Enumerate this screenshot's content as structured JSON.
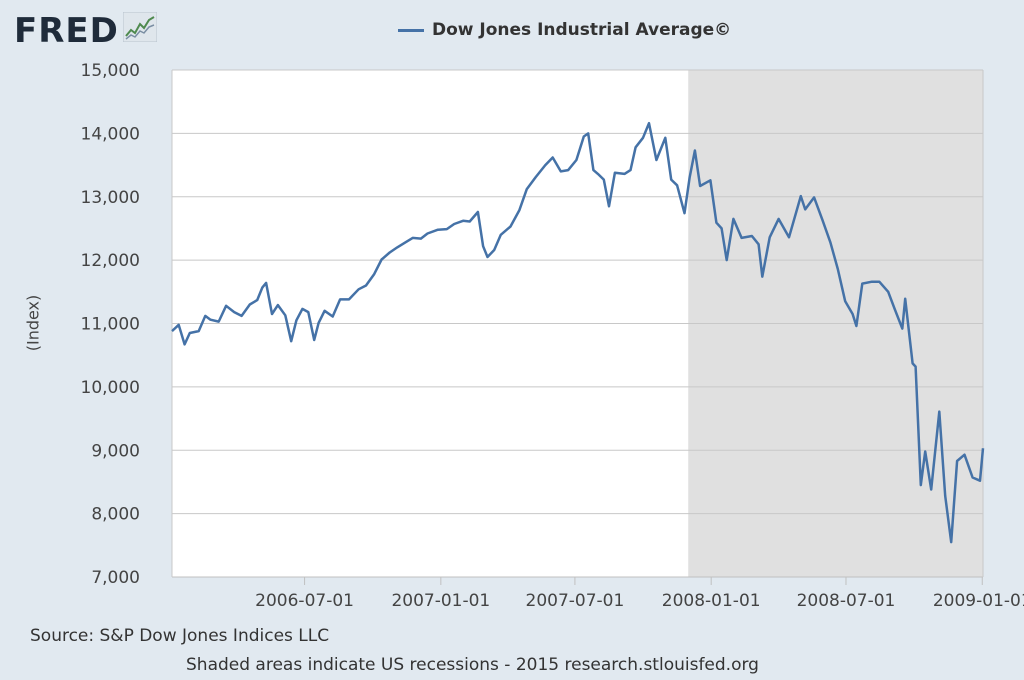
{
  "logo": {
    "text": "FRED"
  },
  "chart_data": {
    "type": "line",
    "title": "Dow Jones Industrial Average©",
    "ylabel": "(Index)",
    "xlabel": "",
    "ylim": [
      7000,
      15000
    ],
    "xlim": [
      "2006-01-03",
      "2009-01-02"
    ],
    "yticks": [
      {
        "value": 7000,
        "label": "7,000"
      },
      {
        "value": 8000,
        "label": "8,000"
      },
      {
        "value": 9000,
        "label": "9,000"
      },
      {
        "value": 10000,
        "label": "10,000"
      },
      {
        "value": 11000,
        "label": "11,000"
      },
      {
        "value": 12000,
        "label": "12,000"
      },
      {
        "value": 13000,
        "label": "13,000"
      },
      {
        "value": 14000,
        "label": "14,000"
      },
      {
        "value": 15000,
        "label": "15,000"
      }
    ],
    "xticks": [
      {
        "date": "2006-07-01",
        "label": "2006-07-01"
      },
      {
        "date": "2007-01-01",
        "label": "2007-01-01"
      },
      {
        "date": "2007-07-01",
        "label": "2007-07-01"
      },
      {
        "date": "2008-01-01",
        "label": "2008-01-01"
      },
      {
        "date": "2008-07-01",
        "label": "2008-07-01"
      },
      {
        "date": "2009-01-01",
        "label": "2009-01-01"
      }
    ],
    "grid": true,
    "legend_position": "top-center",
    "recession": {
      "start": "2007-12-01",
      "end": "2009-01-02"
    },
    "colors": {
      "line": "#4572a7",
      "recession": "#e0e0e0",
      "plot_bg": "#ffffff",
      "grid": "#c8c8c8"
    },
    "series": [
      {
        "name": "Dow Jones Industrial Average©",
        "x": [
          "2006-01-03",
          "2006-01-12",
          "2006-01-20",
          "2006-01-27",
          "2006-02-08",
          "2006-02-17",
          "2006-02-24",
          "2006-03-07",
          "2006-03-17",
          "2006-03-28",
          "2006-04-07",
          "2006-04-18",
          "2006-04-28",
          "2006-05-05",
          "2006-05-10",
          "2006-05-18",
          "2006-05-26",
          "2006-06-05",
          "2006-06-13",
          "2006-06-20",
          "2006-06-28",
          "2006-07-06",
          "2006-07-14",
          "2006-07-20",
          "2006-07-28",
          "2006-08-08",
          "2006-08-18",
          "2006-08-30",
          "2006-09-12",
          "2006-09-22",
          "2006-10-03",
          "2006-10-13",
          "2006-10-24",
          "2006-11-03",
          "2006-11-14",
          "2006-11-24",
          "2006-12-05",
          "2006-12-14",
          "2006-12-28",
          "2007-01-09",
          "2007-01-19",
          "2007-01-31",
          "2007-02-09",
          "2007-02-20",
          "2007-02-27",
          "2007-03-05",
          "2007-03-14",
          "2007-03-23",
          "2007-04-05",
          "2007-04-17",
          "2007-04-27",
          "2007-05-09",
          "2007-05-22",
          "2007-06-01",
          "2007-06-12",
          "2007-06-22",
          "2007-07-03",
          "2007-07-13",
          "2007-07-19",
          "2007-07-26",
          "2007-08-01",
          "2007-08-09",
          "2007-08-16",
          "2007-08-24",
          "2007-09-06",
          "2007-09-14",
          "2007-09-21",
          "2007-10-01",
          "2007-10-09",
          "2007-10-19",
          "2007-10-31",
          "2007-11-08",
          "2007-11-16",
          "2007-11-26",
          "2007-12-03",
          "2007-12-10",
          "2007-12-17",
          "2007-12-31",
          "2008-01-08",
          "2008-01-15",
          "2008-01-22",
          "2008-01-31",
          "2008-02-11",
          "2008-02-25",
          "2008-03-05",
          "2008-03-10",
          "2008-03-20",
          "2008-04-01",
          "2008-04-15",
          "2008-05-01",
          "2008-05-07",
          "2008-05-19",
          "2008-05-30",
          "2008-06-10",
          "2008-06-20",
          "2008-06-30",
          "2008-07-10",
          "2008-07-15",
          "2008-07-23",
          "2008-08-05",
          "2008-08-15",
          "2008-08-27",
          "2008-09-05",
          "2008-09-15",
          "2008-09-19",
          "2008-09-29",
          "2008-10-03",
          "2008-10-10",
          "2008-10-16",
          "2008-10-24",
          "2008-11-04",
          "2008-11-12",
          "2008-11-20",
          "2008-11-28",
          "2008-12-08",
          "2008-12-19",
          "2008-12-29",
          "2009-01-02"
        ],
        "values": [
          10880,
          10980,
          10670,
          10850,
          10880,
          11120,
          11060,
          11030,
          11280,
          11180,
          11120,
          11300,
          11370,
          11570,
          11640,
          11150,
          11290,
          11130,
          10720,
          11050,
          11230,
          11180,
          10740,
          11010,
          11200,
          11110,
          11380,
          11380,
          11540,
          11600,
          11780,
          12010,
          12120,
          12200,
          12280,
          12350,
          12340,
          12420,
          12480,
          12490,
          12570,
          12620,
          12610,
          12760,
          12220,
          12050,
          12160,
          12400,
          12530,
          12790,
          13120,
          13310,
          13500,
          13620,
          13400,
          13420,
          13580,
          13950,
          14000,
          13420,
          13360,
          13270,
          12850,
          13380,
          13360,
          13420,
          13780,
          13930,
          14160,
          13580,
          13930,
          13270,
          13180,
          12740,
          13310,
          13730,
          13170,
          13260,
          12590,
          12500,
          12000,
          12650,
          12350,
          12380,
          12250,
          11740,
          12360,
          12650,
          12360,
          13010,
          12800,
          12990,
          12640,
          12280,
          11860,
          11350,
          11150,
          10960,
          11630,
          11660,
          11660,
          11500,
          11220,
          10920,
          11390,
          10370,
          10320,
          8450,
          8980,
          8380,
          9610,
          8280,
          7550,
          8830,
          8930,
          8570,
          8520,
          9030
        ]
      }
    ]
  },
  "footer": {
    "source": "Source: S&P Dow Jones Indices LLC",
    "note": "Shaded areas indicate US recessions - 2015 research.stlouisfed.org"
  }
}
